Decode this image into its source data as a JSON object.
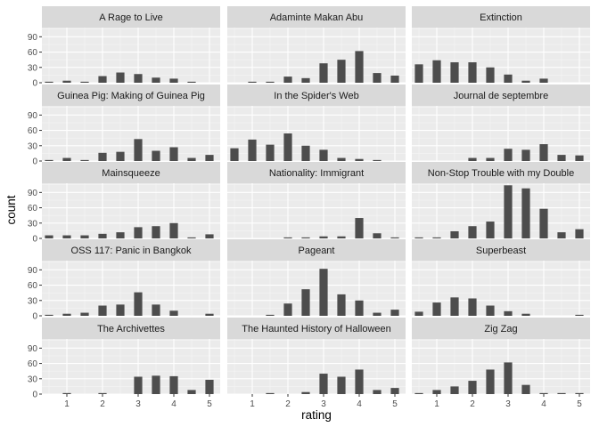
{
  "chart_data": {
    "type": "bar",
    "facet_layout": "5 rows x 3 columns, shared axes",
    "xlabel": "rating",
    "ylabel": "count",
    "x_ticks": [
      1,
      2,
      3,
      4,
      5
    ],
    "y_ticks": [
      0,
      30,
      60,
      90
    ],
    "xlim": [
      0.3,
      5.3
    ],
    "ylim": [
      0,
      108
    ],
    "grid": true,
    "colors": {
      "bar": "#4d4d4d",
      "panel_bg": "#ebebeb",
      "strip_bg": "#d9d9d9",
      "grid_major": "#ffffff",
      "grid_minor": "#f5f5f5"
    },
    "x": [
      0.5,
      1.0,
      1.5,
      2.0,
      2.5,
      3.0,
      3.5,
      4.0,
      4.5,
      5.0
    ],
    "panels": [
      {
        "title": "A Rage to Live",
        "values": [
          2,
          4,
          2,
          13,
          20,
          17,
          10,
          8,
          2,
          0
        ]
      },
      {
        "title": "Adaminte Makan Abu",
        "values": [
          0,
          2,
          2,
          12,
          9,
          38,
          45,
          62,
          19,
          14
        ]
      },
      {
        "title": "Extinction",
        "values": [
          36,
          44,
          40,
          40,
          30,
          16,
          4,
          8,
          0,
          0
        ]
      },
      {
        "title": "Guinea Pig: Making of Guinea Pig",
        "values": [
          2,
          6,
          2,
          16,
          18,
          43,
          20,
          27,
          6,
          12
        ]
      },
      {
        "title": "In the Spider's Web",
        "values": [
          25,
          42,
          32,
          54,
          30,
          22,
          6,
          4,
          2,
          0
        ]
      },
      {
        "title": "Journal de septembre",
        "values": [
          0,
          0,
          0,
          6,
          6,
          24,
          22,
          33,
          12,
          11
        ]
      },
      {
        "title": "Mainsqueeze",
        "values": [
          6,
          6,
          6,
          9,
          12,
          22,
          24,
          30,
          2,
          8
        ]
      },
      {
        "title": "Nationality: Immigrant",
        "values": [
          0,
          0,
          0,
          2,
          2,
          4,
          4,
          40,
          10,
          2
        ]
      },
      {
        "title": "Non-Stop Trouble with my Double",
        "values": [
          2,
          2,
          14,
          24,
          33,
          104,
          98,
          58,
          12,
          18
        ]
      },
      {
        "title": "OSS 117: Panic in Bangkok",
        "values": [
          2,
          4,
          6,
          20,
          22,
          46,
          22,
          10,
          0,
          4
        ]
      },
      {
        "title": "Pageant",
        "values": [
          0,
          0,
          2,
          24,
          52,
          92,
          42,
          30,
          6,
          12
        ]
      },
      {
        "title": "Superbeast",
        "values": [
          8,
          26,
          36,
          34,
          20,
          9,
          4,
          0,
          0,
          2
        ]
      },
      {
        "title": "The Archivettes",
        "values": [
          0,
          2,
          0,
          2,
          0,
          34,
          36,
          35,
          8,
          28
        ]
      },
      {
        "title": "The Haunted History of Halloween",
        "values": [
          0,
          0,
          2,
          0,
          4,
          40,
          34,
          48,
          8,
          12
        ]
      },
      {
        "title": "Zig Zag",
        "values": [
          2,
          8,
          15,
          26,
          48,
          62,
          18,
          2,
          2,
          2
        ]
      }
    ]
  }
}
